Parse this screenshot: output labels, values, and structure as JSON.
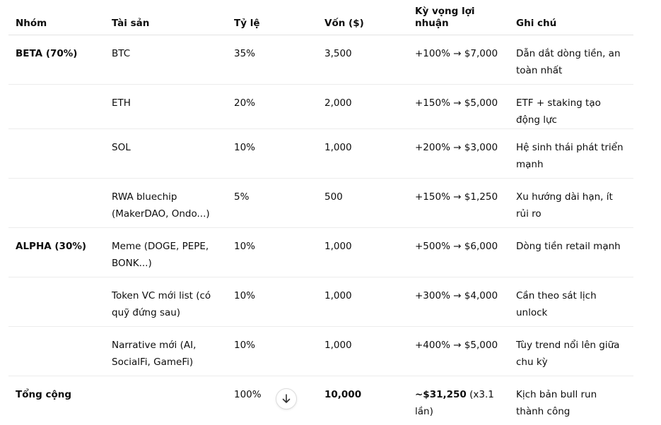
{
  "table": {
    "headers": [
      "Nhóm",
      "Tài sản",
      "Tỷ lệ",
      "Vốn ($)",
      "Kỳ vọng lợi nhuận",
      "Ghi chú"
    ],
    "rows": [
      {
        "group": "BETA (70%)",
        "asset": "BTC",
        "ratio": "35%",
        "capital": "3,500",
        "expected": "+100% → $7,000",
        "note": "Dẫn dắt dòng tiền, an toàn nhất"
      },
      {
        "group": "",
        "asset": "ETH",
        "ratio": "20%",
        "capital": "2,000",
        "expected": "+150% → $5,000",
        "note": "ETF + staking tạo động lực"
      },
      {
        "group": "",
        "asset": "SOL",
        "ratio": "10%",
        "capital": "1,000",
        "expected": "+200% → $3,000",
        "note": "Hệ sinh thái phát triển mạnh"
      },
      {
        "group": "",
        "asset": "RWA bluechip (MakerDAO, Ondo...)",
        "ratio": "5%",
        "capital": "500",
        "expected": "+150% → $1,250",
        "note": "Xu hướng dài hạn, ít rủi ro"
      },
      {
        "group": "ALPHA (30%)",
        "asset": "Meme (DOGE, PEPE, BONK...)",
        "ratio": "10%",
        "capital": "1,000",
        "expected": "+500% → $6,000",
        "note": "Dòng tiền retail mạnh"
      },
      {
        "group": "",
        "asset": "Token VC mới list (có quỹ đứng sau)",
        "ratio": "10%",
        "capital": "1,000",
        "expected": "+300% → $4,000",
        "note": "Cần theo sát lịch unlock"
      },
      {
        "group": "",
        "asset": "Narrative mới (AI, SocialFi, GameFi)",
        "ratio": "10%",
        "capital": "1,000",
        "expected": "+400% → $5,000",
        "note": "Tùy trend nổi lên giữa chu kỳ"
      }
    ],
    "total": {
      "group": "Tổng cộng",
      "asset": "",
      "ratio": "100%",
      "capital": "10,000",
      "expected_bold": "~$31,250",
      "expected_rest": " (x3.1 lần)",
      "note": "Kịch bản bull run thành công"
    }
  },
  "scroll_button": {
    "icon": "arrow-down-icon"
  }
}
